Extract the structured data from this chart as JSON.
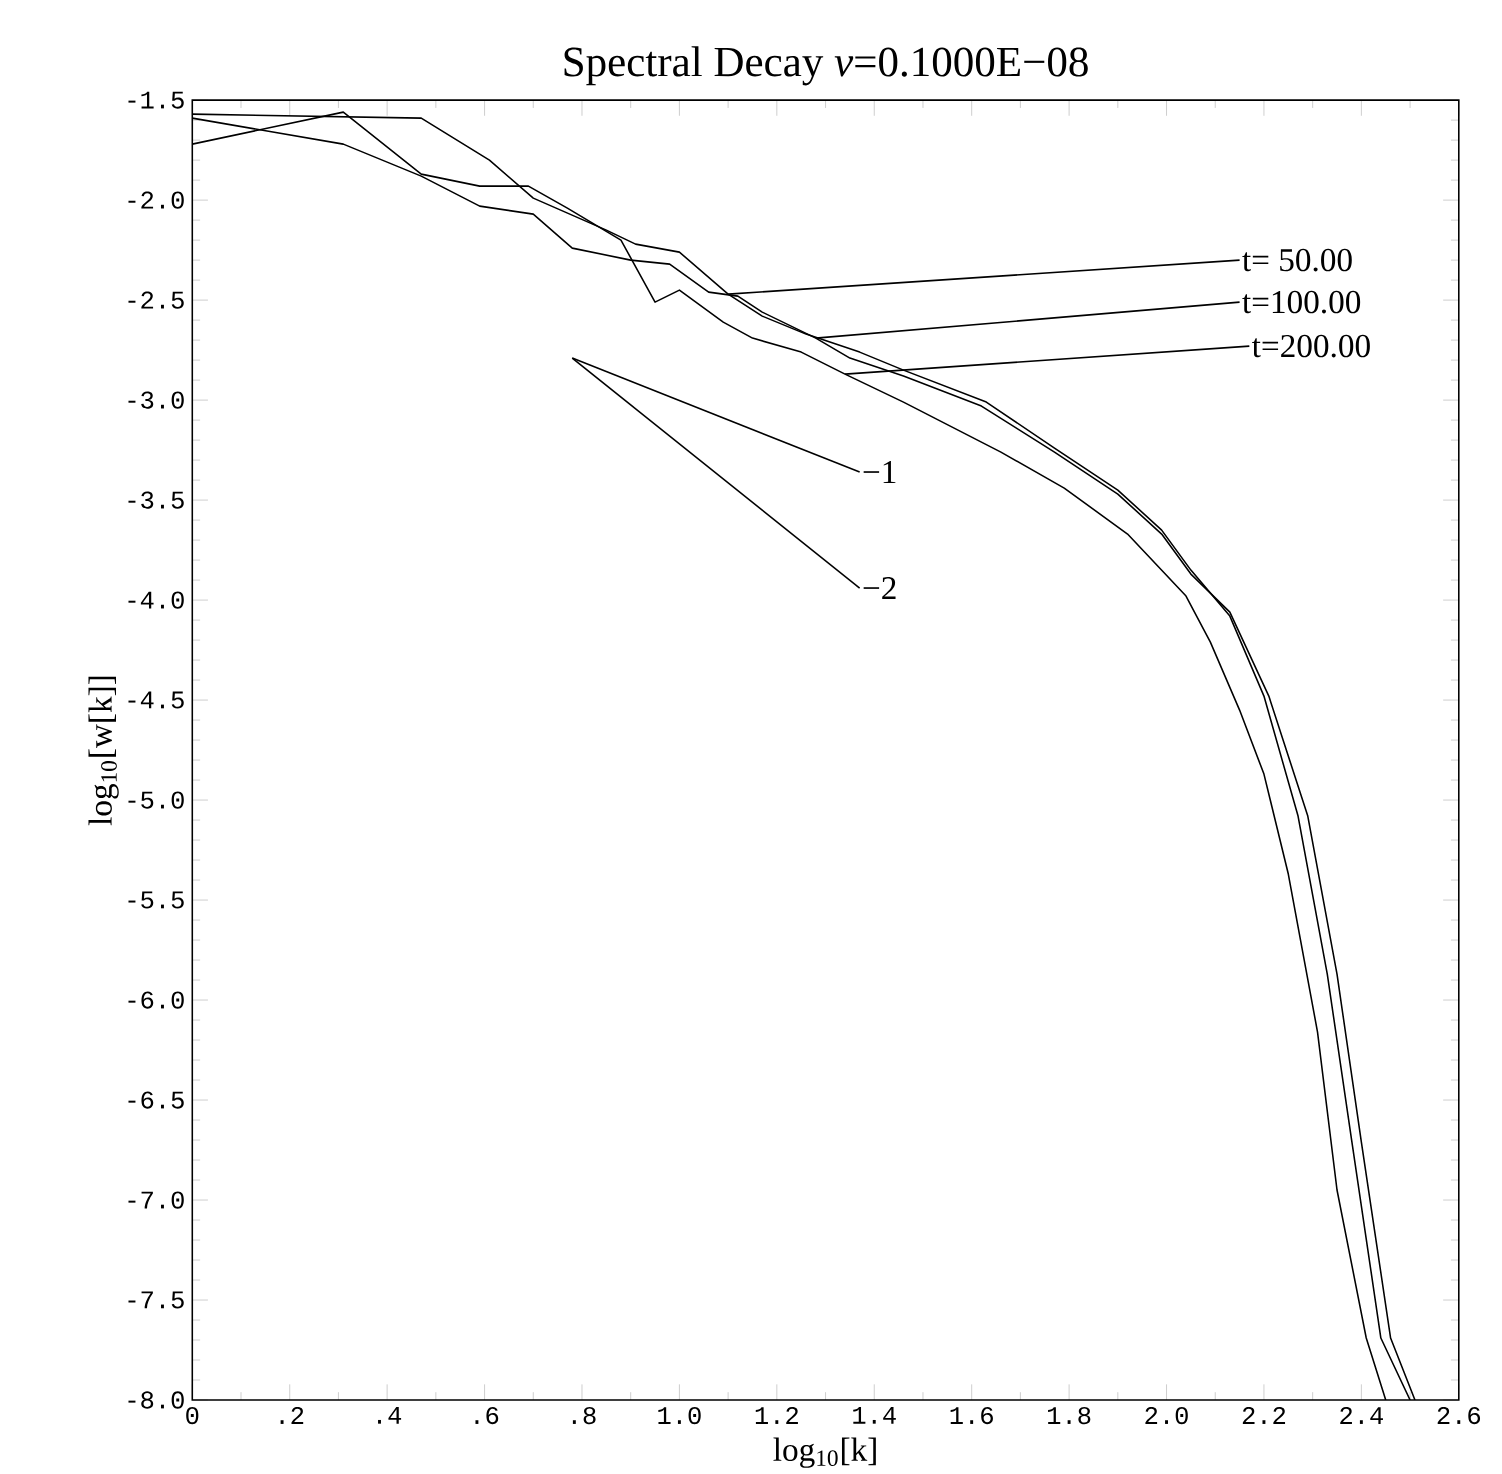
{
  "chart_data": {
    "type": "line",
    "title": "Spectral Decay  *ν*=0.1000E−08",
    "xlabel": "log$_{10}$[k]",
    "ylabel": "log$_{10}$[w[k]]",
    "xlim": [
      0,
      2.6
    ],
    "ylim": [
      -8.0,
      -1.5
    ],
    "xticks": [
      {
        "value": 0,
        "label": "0"
      },
      {
        "value": 0.2,
        "label": ".2"
      },
      {
        "value": 0.4,
        "label": ".4"
      },
      {
        "value": 0.6,
        "label": ".6"
      },
      {
        "value": 0.8,
        "label": ".8"
      },
      {
        "value": 1.0,
        "label": "1.0"
      },
      {
        "value": 1.2,
        "label": "1.2"
      },
      {
        "value": 1.4,
        "label": "1.4"
      },
      {
        "value": 1.6,
        "label": "1.6"
      },
      {
        "value": 1.8,
        "label": "1.8"
      },
      {
        "value": 2.0,
        "label": "2.0"
      },
      {
        "value": 2.2,
        "label": "2.2"
      },
      {
        "value": 2.4,
        "label": "2.4"
      },
      {
        "value": 2.6,
        "label": "2.6"
      }
    ],
    "yticks": [
      {
        "value": -8.0,
        "label": "-8.0"
      },
      {
        "value": -7.5,
        "label": "-7.5"
      },
      {
        "value": -7.0,
        "label": "-7.0"
      },
      {
        "value": -6.5,
        "label": "-6.5"
      },
      {
        "value": -6.0,
        "label": "-6.0"
      },
      {
        "value": -5.5,
        "label": "-5.5"
      },
      {
        "value": -5.0,
        "label": "-5.0"
      },
      {
        "value": -4.5,
        "label": "-4.5"
      },
      {
        "value": -4.0,
        "label": "-4.0"
      },
      {
        "value": -3.5,
        "label": "-3.5"
      },
      {
        "value": -3.0,
        "label": "-3.0"
      },
      {
        "value": -2.5,
        "label": "-2.5"
      },
      {
        "value": -2.0,
        "label": "-2.0"
      },
      {
        "value": -1.5,
        "label": "-1.5"
      }
    ],
    "series": [
      {
        "color": "#000000",
        "x": [
          0.0,
          0.47,
          0.61,
          0.7,
          0.85,
          0.91,
          1.0,
          1.1,
          1.17,
          1.26,
          1.37,
          1.46,
          1.63,
          1.77,
          1.9,
          1.99,
          2.05,
          2.13,
          2.2,
          2.27,
          2.33,
          2.38,
          2.44,
          2.5
        ],
        "values": [
          -1.57,
          -1.59,
          -1.8,
          -1.99,
          -2.15,
          -2.22,
          -2.26,
          -2.47,
          -2.58,
          -2.67,
          -2.76,
          -2.85,
          -3.01,
          -3.24,
          -3.45,
          -3.65,
          -3.85,
          -4.08,
          -4.48,
          -5.08,
          -5.87,
          -6.7,
          -7.69,
          -8.0
        ]
      },
      {
        "color": "#000000",
        "x": [
          0.0,
          0.31,
          0.47,
          0.59,
          0.7,
          0.78,
          0.9,
          0.98,
          1.06,
          1.12,
          1.17,
          1.28,
          1.35,
          1.46,
          1.62,
          1.77,
          1.9,
          1.99,
          2.05,
          2.13,
          2.21,
          2.29,
          2.35,
          2.4,
          2.46,
          2.51
        ],
        "values": [
          -1.59,
          -1.72,
          -1.88,
          -2.03,
          -2.07,
          -2.24,
          -2.3,
          -2.32,
          -2.46,
          -2.48,
          -2.56,
          -2.69,
          -2.79,
          -2.88,
          -3.03,
          -3.26,
          -3.47,
          -3.67,
          -3.87,
          -4.06,
          -4.48,
          -5.08,
          -5.87,
          -6.71,
          -7.69,
          -8.0
        ]
      },
      {
        "color": "#000000",
        "x": [
          0.0,
          0.31,
          0.47,
          0.59,
          0.69,
          0.77,
          0.88,
          0.95,
          1.0,
          1.09,
          1.15,
          1.25,
          1.34,
          1.46,
          1.66,
          1.79,
          1.92,
          2.04,
          2.09,
          2.15,
          2.2,
          2.25,
          2.31,
          2.35,
          2.41,
          2.45
        ],
        "values": [
          -1.72,
          -1.56,
          -1.87,
          -1.93,
          -1.93,
          -2.04,
          -2.2,
          -2.51,
          -2.45,
          -2.61,
          -2.69,
          -2.76,
          -2.87,
          -3.01,
          -3.26,
          -3.44,
          -3.67,
          -3.98,
          -4.21,
          -4.55,
          -4.87,
          -5.37,
          -6.16,
          -6.95,
          -7.69,
          -8.0
        ]
      },
      {
        "name": "t= 50.00",
        "color": "#000000",
        "x": [
          1.1,
          2.15
        ],
        "values": [
          -2.47,
          -2.3
        ]
      },
      {
        "name": "t=100.00",
        "color": "#000000",
        "x": [
          1.28,
          2.15
        ],
        "values": [
          -2.69,
          -2.51
        ]
      },
      {
        "name": "t=200.00",
        "color": "#000000",
        "x": [
          1.34,
          2.17
        ],
        "values": [
          -2.87,
          -2.73
        ]
      },
      {
        "name": "−1",
        "color": "#000000",
        "x": [
          0.78,
          1.37
        ],
        "values": [
          -2.79,
          -3.36
        ]
      },
      {
        "name": "−2",
        "color": "#000000",
        "x": [
          0.78,
          1.37
        ],
        "values": [
          -2.79,
          -3.94
        ]
      }
    ]
  }
}
